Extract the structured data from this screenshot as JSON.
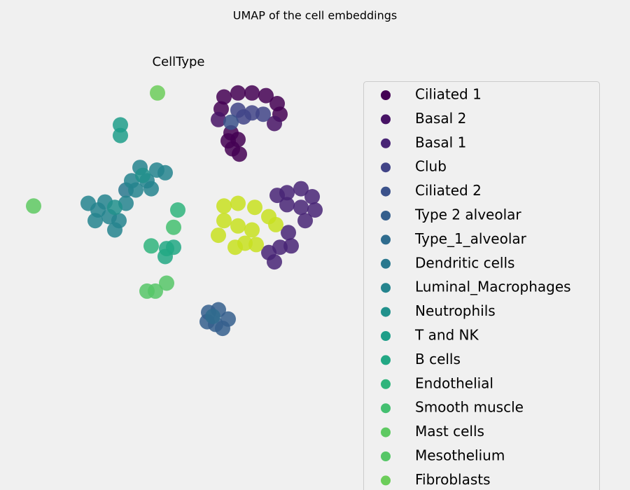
{
  "chart_data": {
    "type": "scatter",
    "title": "UMAP of the cell embeddings",
    "subtitle": "CellType",
    "xlim": [
      0,
      22
    ],
    "ylim": [
      0,
      20
    ],
    "series": [
      {
        "name": "Ciliated 1",
        "color": "#440154",
        "x": [
          14,
          15,
          16,
          17,
          17.8,
          18,
          13.8,
          14.5,
          15,
          14.6,
          15.1,
          14.3
        ],
        "values": [
          18.5,
          18.8,
          18.8,
          18.6,
          18,
          17.2,
          17.6,
          15.8,
          15.3,
          14.6,
          14.2,
          15.2
        ]
      },
      {
        "name": "Basal 2",
        "color": "#471365",
        "x": [
          17.6,
          13.6
        ],
        "values": [
          16.5,
          16.8
        ]
      },
      {
        "name": "Basal 1",
        "color": "#482475",
        "x": [
          18.5,
          19.5,
          20.3,
          20.5,
          19.5,
          18.5,
          17.8,
          19.8,
          18.6,
          18,
          17.2,
          18.8,
          17.6
        ],
        "values": [
          11.3,
          11.6,
          11,
          10,
          10.2,
          10.4,
          11.1,
          9.2,
          8.3,
          7.2,
          6.8,
          7.3,
          6.1
        ]
      },
      {
        "name": "Club",
        "color": "#414487",
        "x": [
          15,
          16,
          15.4,
          16.8
        ],
        "values": [
          17.5,
          17.3,
          17,
          17.2
        ]
      },
      {
        "name": "Ciliated 2",
        "color": "#3b528b",
        "x": [
          14.5
        ],
        "values": [
          16.6
        ]
      },
      {
        "name": "Type 2 alveolar",
        "color": "#355f8d",
        "x": [
          12.9,
          13.6,
          14.3,
          13.4,
          12.8,
          13.9
        ],
        "values": [
          2.3,
          2.5,
          1.8,
          1.4,
          1.6,
          1.1
        ]
      },
      {
        "name": "Type_1_alveolar",
        "color": "#2f6c8e",
        "x": [
          13.2
        ],
        "values": [
          2.0
        ]
      },
      {
        "name": "Dendritic cells",
        "color": "#2a788e",
        "x": [
          7
        ],
        "values": [
          11.5
        ]
      },
      {
        "name": "Luminal_Macrophages",
        "color": "#25848e",
        "x": [
          4.3,
          5,
          5.8,
          6.5,
          5.5,
          7,
          7.7,
          8.5,
          9.2,
          9.8,
          8,
          7.4,
          8.8,
          4.8,
          6.2
        ],
        "values": [
          10.5,
          10,
          9.5,
          9.2,
          10.6,
          10.5,
          11.5,
          12.2,
          13,
          12.8,
          13.2,
          12.2,
          11.6,
          9.2,
          8.5
        ]
      },
      {
        "name": "Neutrophils",
        "color": "#21918c",
        "x": [
          6.2,
          8.2
        ],
        "values": [
          10.2,
          12.6
        ]
      },
      {
        "name": "T and NK",
        "color": "#1f9e89",
        "x": [
          6.6,
          6.6
        ],
        "values": [
          16.4,
          15.6
        ]
      },
      {
        "name": "B cells",
        "color": "#22a884",
        "x": [
          9.9,
          10.4,
          9.8
        ],
        "values": [
          7.1,
          7.2,
          6.5
        ]
      },
      {
        "name": "Endothelial",
        "color": "#2fb47c",
        "x": [
          10.7,
          8.8
        ],
        "values": [
          10.0,
          7.3
        ]
      },
      {
        "name": "Smooth muscle",
        "color": "#44bf70",
        "x": [
          10.4
        ],
        "values": [
          8.7
        ]
      },
      {
        "name": "Mast cells",
        "color": "#5ec962",
        "x": [
          0.4
        ],
        "values": [
          10.3
        ]
      },
      {
        "name": "Mesothelium",
        "color": "#56c667",
        "x": [
          8.5,
          9.1,
          9.9
        ],
        "values": [
          3.9,
          3.9,
          4.5
        ]
      },
      {
        "name": "Fibroblasts",
        "color": "#6ccd5a",
        "x": [
          9.25
        ],
        "values": [
          18.8
        ]
      },
      {
        "color": "#c8e020",
        "x": [
          14,
          15,
          16.2,
          17.2,
          14,
          15,
          16,
          15.5,
          14.8,
          16.3,
          13.6,
          17.7
        ],
        "values": [
          10.3,
          10.5,
          10.2,
          9.5,
          9.2,
          8.8,
          8.5,
          7.5,
          7.2,
          7.4,
          8.1,
          8.9
        ]
      }
    ]
  }
}
